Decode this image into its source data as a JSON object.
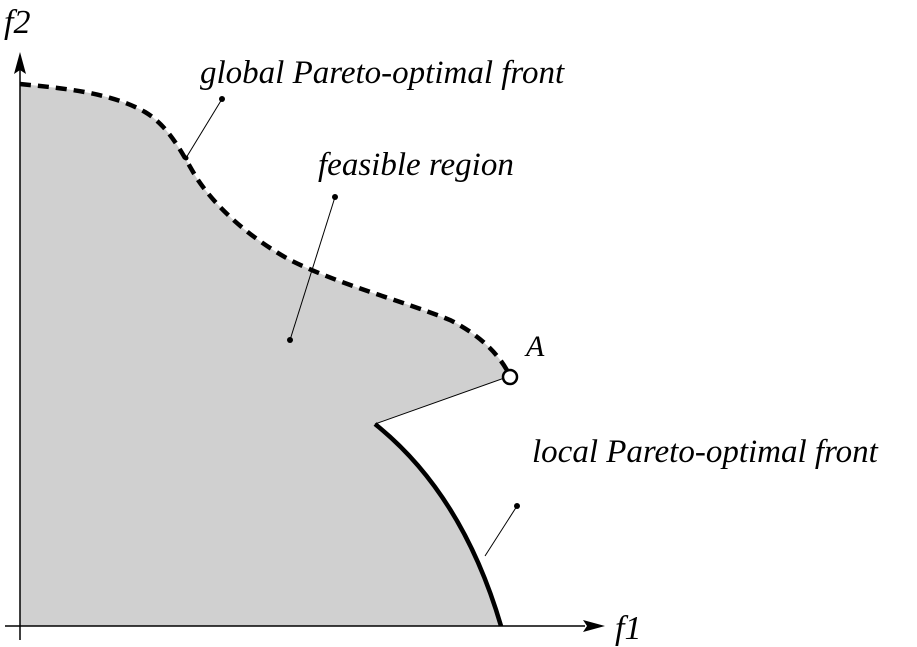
{
  "diagram": {
    "axes": {
      "x_label": "f1",
      "y_label": "f2"
    },
    "labels": {
      "global_front": "global Pareto-optimal front",
      "feasible_region": "feasible region",
      "point_a": "A",
      "local_front": "local Pareto-optimal front"
    },
    "colors": {
      "region_fill": "#d0d0d0",
      "stroke": "#000000",
      "background": "#ffffff"
    }
  }
}
